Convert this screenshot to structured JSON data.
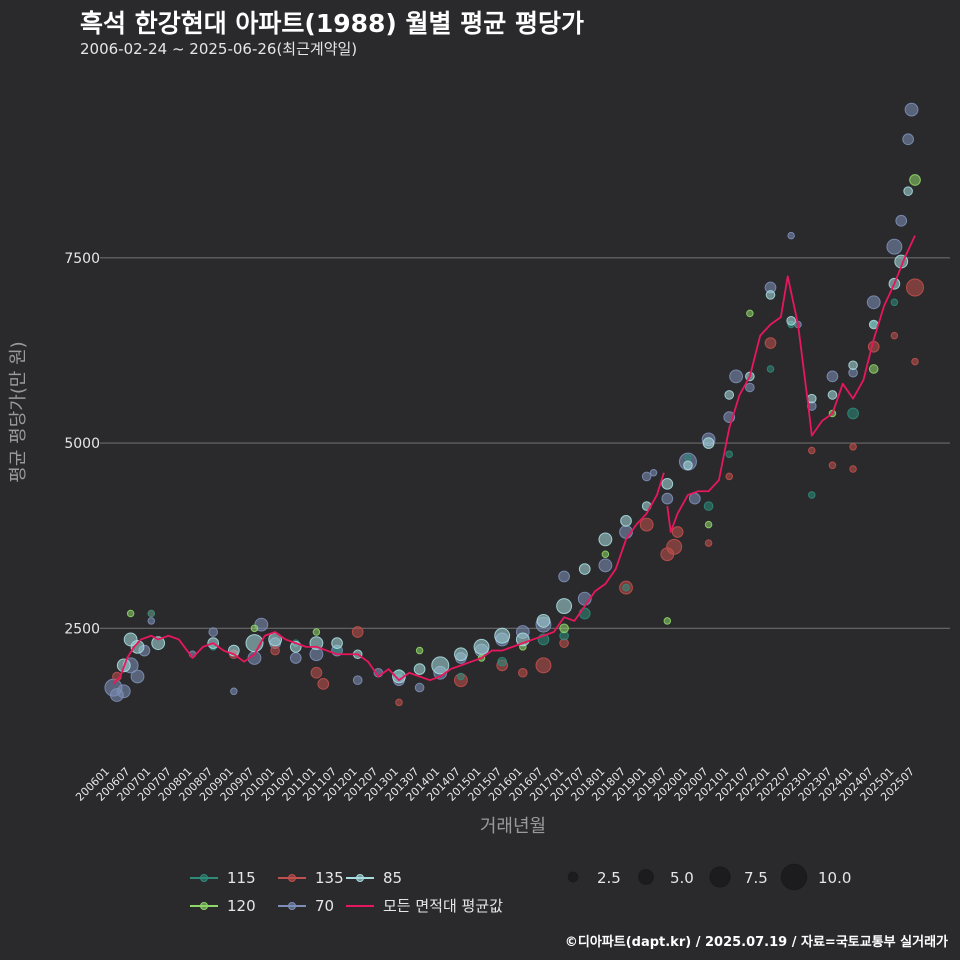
{
  "title": "흑석 한강현대 아파트(1988) 월별 평균 평당가",
  "subtitle": "2006-02-24 ~ 2025-06-26(최근계약일)",
  "footer": "©디아파트(dapt.kr) / 2025.07.19 / 자료=국토교통부 실거래가",
  "chart_data": {
    "type": "scatter",
    "xlabel": "거래년월",
    "ylabel": "평균 평당가(만 원)",
    "ylim": [
      750,
      9900
    ],
    "yticks": [
      2500,
      5000,
      7500
    ],
    "xticks": [
      "200601",
      "200607",
      "200701",
      "200707",
      "200801",
      "200807",
      "200901",
      "200907",
      "201001",
      "201007",
      "201101",
      "201107",
      "201201",
      "201207",
      "201301",
      "201307",
      "201401",
      "201407",
      "201501",
      "201507",
      "201601",
      "201607",
      "201701",
      "201707",
      "201801",
      "201807",
      "201901",
      "201907",
      "202001",
      "202007",
      "202101",
      "202107",
      "202201",
      "202207",
      "202301",
      "202307",
      "202401",
      "202407",
      "202501",
      "202507"
    ],
    "grid": "horizontal",
    "legend_placement": "bottom",
    "colors": {
      "115": "#2e8b7a",
      "120": "#8fd66a",
      "135": "#c0504d",
      "70": "#7d8fb8",
      "85": "#a8dce0",
      "all": "#e8175d"
    },
    "series": [
      {
        "name": "115",
        "points": [
          [
            "2007-01",
            2700,
            1
          ],
          [
            "2008-07",
            2250,
            1
          ],
          [
            "2010-07",
            2300,
            1
          ],
          [
            "2011-07",
            2200,
            1
          ],
          [
            "2013-01",
            1900,
            1
          ],
          [
            "2014-07",
            1850,
            1
          ],
          [
            "2015-07",
            2050,
            2
          ],
          [
            "2016-07",
            2350,
            3
          ],
          [
            "2017-01",
            2400,
            2
          ],
          [
            "2017-07",
            2700,
            3
          ],
          [
            "2018-07",
            3050,
            1
          ],
          [
            "2020-01",
            4800,
            1
          ],
          [
            "2020-07",
            4150,
            2
          ],
          [
            "2021-01",
            4850,
            1
          ],
          [
            "2022-01",
            6000,
            1
          ],
          [
            "2022-07",
            6600,
            1
          ],
          [
            "2023-01",
            4300,
            1
          ],
          [
            "2024-01",
            5400,
            3
          ],
          [
            "2024-07",
            6600,
            1
          ],
          [
            "2025-01",
            6900,
            1
          ]
        ]
      },
      {
        "name": "120",
        "points": [
          [
            "2006-07",
            2700,
            1
          ],
          [
            "2009-07",
            2500,
            1
          ],
          [
            "2011-01",
            2450,
            1
          ],
          [
            "2013-07",
            2200,
            1
          ],
          [
            "2015-01",
            2100,
            1
          ],
          [
            "2016-01",
            2250,
            1
          ],
          [
            "2017-01",
            2500,
            2
          ],
          [
            "2018-01",
            3500,
            1
          ],
          [
            "2019-07",
            2600,
            1
          ],
          [
            "2020-07",
            3900,
            1
          ],
          [
            "2021-07",
            6750,
            1
          ],
          [
            "2023-07",
            5400,
            1
          ],
          [
            "2024-07",
            6000,
            2
          ],
          [
            "2025-07",
            8550,
            3
          ]
        ]
      },
      {
        "name": "135",
        "points": [
          [
            "2006-03",
            1850,
            2
          ],
          [
            "2007-01",
            2700,
            1
          ],
          [
            "2009-01",
            2150,
            2
          ],
          [
            "2010-01",
            2200,
            2
          ],
          [
            "2011-01",
            1900,
            3
          ],
          [
            "2011-03",
            1750,
            3
          ],
          [
            "2012-01",
            2450,
            3
          ],
          [
            "2013-01",
            1500,
            1
          ],
          [
            "2014-07",
            1800,
            4
          ],
          [
            "2015-07",
            2000,
            3
          ],
          [
            "2016-01",
            1900,
            2
          ],
          [
            "2016-07",
            2000,
            5
          ],
          [
            "2017-01",
            2300,
            2
          ],
          [
            "2018-07",
            3050,
            4
          ],
          [
            "2019-01",
            3900,
            4
          ],
          [
            "2019-07",
            3500,
            4
          ],
          [
            "2019-09",
            3600,
            5
          ],
          [
            "2019-10",
            3800,
            3
          ],
          [
            "2020-07",
            3650,
            1
          ],
          [
            "2021-01",
            4550,
            1
          ],
          [
            "2022-01",
            6350,
            3
          ],
          [
            "2023-01",
            4900,
            1
          ],
          [
            "2023-07",
            4700,
            1
          ],
          [
            "2024-01",
            4950,
            1
          ],
          [
            "2024-01",
            4650,
            1
          ],
          [
            "2024-07",
            6300,
            3
          ],
          [
            "2025-01",
            6450,
            1
          ],
          [
            "2025-07",
            6100,
            1
          ],
          [
            "2025-07",
            7100,
            6
          ]
        ]
      },
      {
        "name": "70",
        "points": [
          [
            "2006-02",
            1700,
            6
          ],
          [
            "2006-03",
            1600,
            4
          ],
          [
            "2006-05",
            1650,
            4
          ],
          [
            "2006-07",
            2000,
            5
          ],
          [
            "2006-09",
            1850,
            4
          ],
          [
            "2006-11",
            2200,
            3
          ],
          [
            "2007-01",
            2600,
            1
          ],
          [
            "2008-01",
            2150,
            1
          ],
          [
            "2008-07",
            2450,
            2
          ],
          [
            "2009-01",
            1650,
            1
          ],
          [
            "2009-07",
            2100,
            4
          ],
          [
            "2009-09",
            2550,
            4
          ],
          [
            "2010-01",
            2300,
            3
          ],
          [
            "2010-07",
            2100,
            3
          ],
          [
            "2011-01",
            2150,
            4
          ],
          [
            "2011-07",
            2200,
            3
          ],
          [
            "2012-01",
            1800,
            2
          ],
          [
            "2012-07",
            1900,
            2
          ],
          [
            "2013-01",
            1800,
            3
          ],
          [
            "2013-07",
            1700,
            2
          ],
          [
            "2014-01",
            1900,
            4
          ],
          [
            "2014-07",
            2100,
            3
          ],
          [
            "2015-01",
            2200,
            4
          ],
          [
            "2015-07",
            2350,
            4
          ],
          [
            "2016-01",
            2450,
            4
          ],
          [
            "2016-07",
            2550,
            5
          ],
          [
            "2017-01",
            3200,
            3
          ],
          [
            "2017-07",
            2900,
            4
          ],
          [
            "2018-01",
            3350,
            4
          ],
          [
            "2018-07",
            3800,
            4
          ],
          [
            "2019-01",
            4550,
            2
          ],
          [
            "2019-03",
            4600,
            1
          ],
          [
            "2019-07",
            4250,
            3
          ],
          [
            "2020-01",
            4750,
            6
          ],
          [
            "2020-03",
            4250,
            3
          ],
          [
            "2020-07",
            5050,
            4
          ],
          [
            "2021-01",
            5350,
            3
          ],
          [
            "2021-03",
            5900,
            4
          ],
          [
            "2021-07",
            5750,
            2
          ],
          [
            "2022-01",
            7100,
            3
          ],
          [
            "2022-07",
            7800,
            1
          ],
          [
            "2022-09",
            6600,
            1
          ],
          [
            "2023-01",
            5500,
            2
          ],
          [
            "2023-07",
            5900,
            3
          ],
          [
            "2024-01",
            5950,
            2
          ],
          [
            "2024-07",
            6900,
            4
          ],
          [
            "2025-01",
            7650,
            5
          ],
          [
            "2025-03",
            8000,
            3
          ],
          [
            "2025-05",
            9100,
            3
          ],
          [
            "2025-06",
            9500,
            4
          ]
        ]
      },
      {
        "name": "85",
        "points": [
          [
            "2006-05",
            2000,
            4
          ],
          [
            "2006-07",
            2350,
            4
          ],
          [
            "2006-09",
            2250,
            4
          ],
          [
            "2007-03",
            2300,
            4
          ],
          [
            "2008-07",
            2300,
            3
          ],
          [
            "2009-01",
            2200,
            3
          ],
          [
            "2009-07",
            2300,
            6
          ],
          [
            "2010-01",
            2350,
            4
          ],
          [
            "2010-07",
            2250,
            3
          ],
          [
            "2011-01",
            2300,
            4
          ],
          [
            "2011-07",
            2300,
            3
          ],
          [
            "2012-01",
            2150,
            2
          ],
          [
            "2013-01",
            1850,
            4
          ],
          [
            "2013-07",
            1950,
            3
          ],
          [
            "2014-01",
            2000,
            6
          ],
          [
            "2014-07",
            2150,
            4
          ],
          [
            "2015-01",
            2250,
            5
          ],
          [
            "2015-07",
            2400,
            5
          ],
          [
            "2016-01",
            2350,
            4
          ],
          [
            "2016-07",
            2600,
            4
          ],
          [
            "2017-01",
            2800,
            5
          ],
          [
            "2017-07",
            3300,
            3
          ],
          [
            "2018-01",
            3700,
            4
          ],
          [
            "2018-07",
            3950,
            3
          ],
          [
            "2019-01",
            4150,
            2
          ],
          [
            "2019-07",
            4450,
            3
          ],
          [
            "2020-01",
            4700,
            2
          ],
          [
            "2020-07",
            5000,
            3
          ],
          [
            "2021-01",
            5650,
            2
          ],
          [
            "2021-07",
            5900,
            2
          ],
          [
            "2022-01",
            7000,
            2
          ],
          [
            "2022-07",
            6650,
            2
          ],
          [
            "2023-01",
            5600,
            2
          ],
          [
            "2023-07",
            5650,
            2
          ],
          [
            "2024-01",
            6050,
            2
          ],
          [
            "2024-07",
            6600,
            2
          ],
          [
            "2025-01",
            7150,
            3
          ],
          [
            "2025-03",
            7450,
            4
          ],
          [
            "2025-05",
            8400,
            2
          ]
        ]
      }
    ],
    "average_line_name": "모든 면적대 평균값",
    "average_line": [
      [
        "2006-02",
        1750
      ],
      [
        "2006-04",
        1850
      ],
      [
        "2006-06",
        2100
      ],
      [
        "2006-08",
        2250
      ],
      [
        "2006-10",
        2350
      ],
      [
        "2007-01",
        2400
      ],
      [
        "2007-03",
        2350
      ],
      [
        "2007-06",
        2400
      ],
      [
        "2007-09",
        2350
      ],
      [
        "2008-01",
        2100
      ],
      [
        "2008-04",
        2250
      ],
      [
        "2008-07",
        2300
      ],
      [
        "2008-10",
        2200
      ],
      [
        "2009-01",
        2150
      ],
      [
        "2009-04",
        2050
      ],
      [
        "2009-07",
        2150
      ],
      [
        "2009-10",
        2400
      ],
      [
        "2010-01",
        2450
      ],
      [
        "2010-04",
        2350
      ],
      [
        "2010-07",
        2300
      ],
      [
        "2010-10",
        2250
      ],
      [
        "2011-01",
        2250
      ],
      [
        "2011-04",
        2200
      ],
      [
        "2011-07",
        2150
      ],
      [
        "2011-10",
        2150
      ],
      [
        "2012-01",
        2150
      ],
      [
        "2012-04",
        2050
      ],
      [
        "2012-07",
        1850
      ],
      [
        "2012-10",
        1950
      ],
      [
        "2013-01",
        1800
      ],
      [
        "2013-04",
        1900
      ],
      [
        "2013-07",
        1850
      ],
      [
        "2013-10",
        1800
      ],
      [
        "2014-01",
        1850
      ],
      [
        "2014-04",
        1950
      ],
      [
        "2014-07",
        2000
      ],
      [
        "2014-10",
        2050
      ],
      [
        "2015-01",
        2100
      ],
      [
        "2015-04",
        2200
      ],
      [
        "2015-07",
        2200
      ],
      [
        "2015-10",
        2250
      ],
      [
        "2016-01",
        2300
      ],
      [
        "2016-04",
        2350
      ],
      [
        "2016-07",
        2400
      ],
      [
        "2016-10",
        2450
      ],
      [
        "2017-01",
        2650
      ],
      [
        "2017-04",
        2600
      ],
      [
        "2017-07",
        2800
      ],
      [
        "2017-10",
        3000
      ],
      [
        "2018-01",
        3100
      ],
      [
        "2018-04",
        3300
      ],
      [
        "2018-07",
        3700
      ],
      [
        "2018-10",
        3900
      ],
      [
        "2019-01",
        4050
      ],
      [
        "2019-04",
        4300
      ],
      [
        "2019-06",
        4600
      ],
      null,
      [
        "2019-07",
        4150
      ],
      [
        "2019-08",
        3800
      ],
      [
        "2019-10",
        4050
      ],
      [
        "2020-01",
        4300
      ],
      [
        "2020-04",
        4350
      ],
      [
        "2020-07",
        4350
      ],
      [
        "2020-10",
        4500
      ],
      [
        "2021-01",
        5200
      ],
      [
        "2021-04",
        5650
      ],
      [
        "2021-07",
        5900
      ],
      [
        "2021-10",
        6450
      ],
      [
        "2022-01",
        6600
      ],
      [
        "2022-04",
        6700
      ],
      [
        "2022-06",
        7250
      ],
      [
        "2022-09",
        6600
      ],
      [
        "2022-12",
        5500
      ],
      [
        "2023-01",
        5100
      ],
      [
        "2023-04",
        5300
      ],
      [
        "2023-07",
        5400
      ],
      [
        "2023-10",
        5800
      ],
      [
        "2024-01",
        5600
      ],
      [
        "2024-04",
        5850
      ],
      [
        "2024-07",
        6400
      ],
      [
        "2024-10",
        6850
      ],
      [
        "2025-01",
        7150
      ],
      [
        "2025-04",
        7500
      ],
      [
        "2025-07",
        7800
      ]
    ],
    "size_legend": [
      {
        "label": "2.5",
        "size": 2.5
      },
      {
        "label": "5.0",
        "size": 5.0
      },
      {
        "label": "7.5",
        "size": 7.5
      },
      {
        "label": "10.0",
        "size": 10.0
      }
    ],
    "legend_items": [
      {
        "key": "115",
        "label": "115"
      },
      {
        "key": "135",
        "label": "135"
      },
      {
        "key": "85",
        "label": "85"
      },
      {
        "key": "120",
        "label": "120"
      },
      {
        "key": "70",
        "label": "70"
      },
      {
        "key": "all",
        "label": "모든 면적대 평균값"
      }
    ]
  }
}
